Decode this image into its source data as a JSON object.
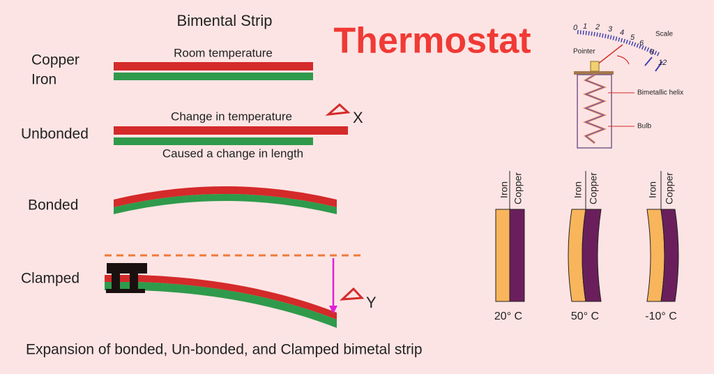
{
  "title": "Thermostat",
  "strip": {
    "heading": "Bimental Strip",
    "room": {
      "labels": [
        "Copper",
        "Iron"
      ],
      "note": "Room temperature"
    },
    "unbonded": {
      "label": "Unbonded",
      "note_above": "Change in temperature",
      "note_below": "Caused a change in length",
      "delta": "X"
    },
    "bonded": {
      "label": "Bonded"
    },
    "clamped": {
      "label": "Clamped",
      "delta": "Y"
    },
    "caption": "Expansion of bonded, Un-bonded, and Clamped bimetal strip"
  },
  "thermostat": {
    "scale_numbers": [
      "0",
      "1",
      "2",
      "3",
      "4",
      "5",
      "6",
      "8",
      "12"
    ],
    "scale_label": "Scale",
    "pointer_label": "Pointer",
    "helix_label": "Bimetallic helix",
    "bulb_label": "Bulb"
  },
  "comparison": [
    {
      "metals": [
        "Iron",
        "Copper"
      ],
      "temperature": "20° C"
    },
    {
      "metals": [
        "Iron",
        "Copper"
      ],
      "temperature": "50° C"
    },
    {
      "metals": [
        "Iron",
        "Copper"
      ],
      "temperature": "-10° C"
    }
  ]
}
